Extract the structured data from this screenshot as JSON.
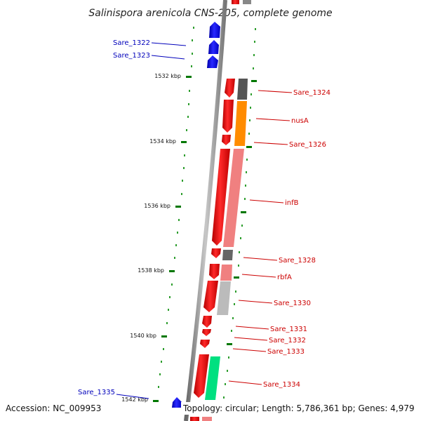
{
  "title": "Salinispora arenicola CNS-205, complete genome",
  "footer": {
    "accession": "Accession: NC_009953",
    "topology": "Topology: circular; Length: 5,786,361 bp; Genes: 4,979"
  },
  "kbp_ticks": [
    "1532 kbp",
    "1534 kbp",
    "1536 kbp",
    "1538 kbp",
    "1540 kbp",
    "1542 kbp"
  ],
  "genes": {
    "reverse": [
      "Sare_1322",
      "Sare_1323",
      "Sare_1335"
    ],
    "forward": [
      "Sare_1324",
      "nusA",
      "Sare_1326",
      "infB",
      "Sare_1328",
      "rbfA",
      "Sare_1330",
      "Sare_1331",
      "Sare_1332",
      "Sare_1333",
      "Sare_1334"
    ]
  },
  "colors": {
    "forward_gene": "#ff0000",
    "reverse_gene": "#0000ff",
    "backbone": "#888888",
    "tick": "#007700",
    "dot": "#2e9e2e",
    "label_forward": "#cc0000",
    "label_reverse": "#0000bb",
    "cog_dark_gray": "#555555",
    "cog_orange": "#ff8c00",
    "cog_salmon": "#f08080",
    "cog_light_gray": "#bbbbbb",
    "cog_green": "#00e080"
  }
}
